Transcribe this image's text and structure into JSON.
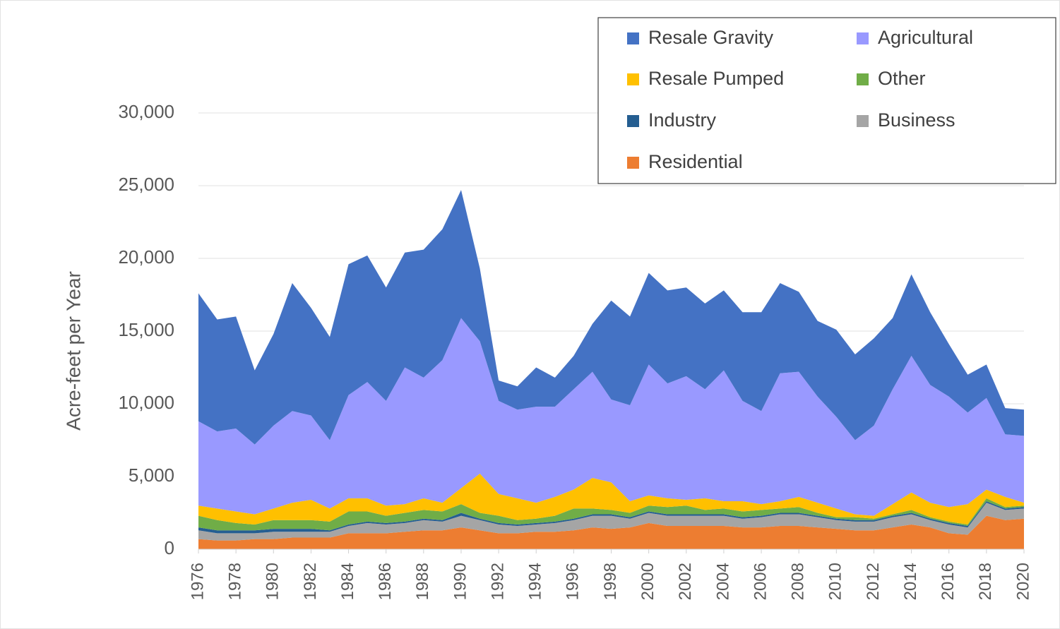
{
  "chart_data": {
    "type": "stacked_area",
    "y_label": "Acre-feet per Year",
    "x": [
      1976,
      1977,
      1978,
      1979,
      1980,
      1981,
      1982,
      1983,
      1984,
      1985,
      1986,
      1987,
      1988,
      1989,
      1990,
      1991,
      1992,
      1993,
      1994,
      1995,
      1996,
      1997,
      1998,
      1999,
      2000,
      2001,
      2002,
      2003,
      2004,
      2005,
      2006,
      2007,
      2008,
      2009,
      2010,
      2011,
      2012,
      2013,
      2014,
      2015,
      2016,
      2017,
      2018,
      2019,
      2020
    ],
    "xlim": [
      1976,
      2020
    ],
    "xticks": [
      1976,
      1978,
      1980,
      1982,
      1984,
      1986,
      1988,
      1990,
      1992,
      1994,
      1996,
      1998,
      2000,
      2002,
      2004,
      2006,
      2008,
      2010,
      2012,
      2014,
      2016,
      2018,
      2020
    ],
    "ylim": [
      0,
      30000
    ],
    "yticks": [
      0,
      {
        "value": 5000,
        "label": "5,000"
      },
      {
        "value": 10000,
        "label": "10,000"
      },
      {
        "value": 15000,
        "label": "15,000"
      },
      {
        "value": 20000,
        "label": "20,000"
      },
      {
        "value": 25000,
        "label": "25,000"
      },
      {
        "value": 30000,
        "label": "30,000"
      }
    ],
    "grid": true,
    "legend": "top-right",
    "series": [
      {
        "name": "Resale Gravity",
        "color": "#4472c4",
        "values": [
          8800,
          7700,
          7700,
          5100,
          6300,
          8800,
          7400,
          7100,
          9000,
          8700,
          7800,
          7900,
          8800,
          9000,
          8800,
          5000,
          1400,
          1600,
          2700,
          2000,
          2300,
          3300,
          6800,
          6100,
          6300,
          6400,
          6100,
          5900,
          5500,
          6100,
          6800,
          6200,
          5500,
          5200,
          6000,
          5900,
          6000,
          4900,
          5600,
          5000,
          3600,
          2600,
          2300,
          1800,
          1800
        ]
      },
      {
        "name": "Agricultural",
        "color": "#9999ff",
        "values": [
          5800,
          5300,
          5700,
          4800,
          5700,
          6300,
          5800,
          4700,
          7100,
          8000,
          7200,
          9400,
          8300,
          9800,
          11700,
          9100,
          6400,
          6100,
          6600,
          6200,
          6900,
          7300,
          5700,
          6600,
          9000,
          7900,
          8500,
          7500,
          9000,
          6900,
          6400,
          8800,
          8600,
          7300,
          6300,
          5100,
          6200,
          7900,
          9400,
          8100,
          7600,
          6300,
          6300,
          4300,
          4600
        ]
      },
      {
        "name": "Resale Pumped",
        "color": "#ffc000",
        "values": [
          700,
          800,
          800,
          700,
          800,
          1200,
          1400,
          900,
          900,
          900,
          700,
          600,
          800,
          600,
          1100,
          2700,
          1500,
          1500,
          1100,
          1300,
          1300,
          2100,
          1900,
          800,
          700,
          600,
          400,
          800,
          500,
          700,
          400,
          500,
          700,
          700,
          600,
          200,
          200,
          700,
          1200,
          1000,
          1000,
          1400,
          600,
          700,
          200
        ]
      },
      {
        "name": "Other",
        "color": "#70ad47",
        "values": [
          800,
          700,
          500,
          400,
          600,
          600,
          600,
          600,
          900,
          700,
          500,
          600,
          600,
          600,
          600,
          400,
          500,
          300,
          300,
          400,
          700,
          400,
          300,
          300,
          400,
          500,
          600,
          300,
          400,
          400,
          400,
          300,
          400,
          200,
          100,
          200,
          100,
          100,
          200,
          100,
          100,
          100,
          200,
          100,
          100
        ]
      },
      {
        "name": "Industry",
        "color": "#255e91",
        "values": [
          200,
          200,
          200,
          200,
          200,
          200,
          200,
          100,
          100,
          100,
          100,
          100,
          100,
          100,
          200,
          100,
          100,
          100,
          100,
          100,
          100,
          100,
          100,
          100,
          100,
          100,
          100,
          100,
          100,
          100,
          100,
          100,
          100,
          100,
          100,
          100,
          100,
          100,
          100,
          100,
          100,
          100,
          100,
          100,
          100
        ]
      },
      {
        "name": "Business",
        "color": "#a5a5a5",
        "values": [
          600,
          500,
          500,
          400,
          500,
          400,
          400,
          400,
          500,
          700,
          600,
          600,
          700,
          600,
          800,
          700,
          600,
          500,
          500,
          600,
          700,
          800,
          900,
          600,
          700,
          700,
          700,
          700,
          700,
          600,
          700,
          800,
          800,
          700,
          600,
          600,
          600,
          700,
          700,
          500,
          600,
          500,
          900,
          700,
          700
        ]
      },
      {
        "name": "Residential",
        "color": "#ed7d31",
        "values": [
          700,
          600,
          600,
          700,
          700,
          800,
          800,
          800,
          1100,
          1100,
          1100,
          1200,
          1300,
          1300,
          1500,
          1300,
          1100,
          1100,
          1200,
          1200,
          1300,
          1500,
          1400,
          1500,
          1800,
          1600,
          1600,
          1600,
          1600,
          1500,
          1500,
          1600,
          1600,
          1500,
          1400,
          1300,
          1300,
          1500,
          1700,
          1500,
          1100,
          1000,
          2300,
          2000,
          2100
        ]
      }
    ]
  }
}
